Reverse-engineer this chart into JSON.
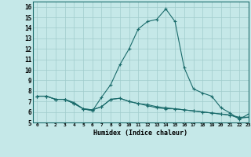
{
  "xlabel": "Humidex (Indice chaleur)",
  "xlim": [
    -0.5,
    23
  ],
  "ylim": [
    5,
    16.5
  ],
  "yticks": [
    5,
    6,
    7,
    8,
    9,
    10,
    11,
    12,
    13,
    14,
    15,
    16
  ],
  "xticks": [
    0,
    1,
    2,
    3,
    4,
    5,
    6,
    7,
    8,
    9,
    10,
    11,
    12,
    13,
    14,
    15,
    16,
    17,
    18,
    19,
    20,
    21,
    22,
    23
  ],
  "background_color": "#c5e8e8",
  "grid_color": "#a0cccc",
  "line_color": "#1a6b6b",
  "series": [
    [
      7.5,
      7.5,
      7.2,
      7.2,
      6.8,
      6.3,
      6.1,
      7.4,
      8.6,
      10.5,
      12.0,
      13.9,
      14.6,
      14.8,
      15.8,
      14.6,
      10.2,
      8.2,
      7.8,
      7.5,
      6.4,
      5.9,
      5.3,
      5.8
    ],
    [
      7.5,
      7.5,
      7.2,
      7.2,
      6.8,
      6.3,
      6.2,
      6.5,
      7.2,
      7.3,
      7.0,
      6.8,
      6.7,
      6.5,
      6.4,
      6.3,
      6.2,
      6.1,
      6.0,
      5.9,
      5.8,
      5.7,
      5.5,
      5.5
    ],
    [
      7.5,
      7.5,
      7.2,
      7.2,
      6.9,
      6.3,
      6.2,
      6.5,
      7.2,
      7.3,
      7.0,
      6.8,
      6.6,
      6.4,
      6.3,
      6.3,
      6.2,
      6.1,
      6.0,
      5.9,
      5.8,
      5.7,
      5.4,
      5.5
    ]
  ]
}
